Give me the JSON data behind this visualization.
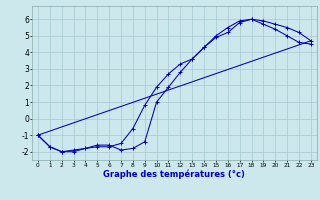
{
  "xlabel": "Graphe des températures (°c)",
  "bg_color": "#cce8ec",
  "grid_color": "#aacdd4",
  "line_color": "#0000bb",
  "xlim": [
    -0.5,
    23.5
  ],
  "ylim": [
    -2.5,
    6.8
  ],
  "xticks": [
    0,
    1,
    2,
    3,
    4,
    5,
    6,
    7,
    8,
    9,
    10,
    11,
    12,
    13,
    14,
    15,
    16,
    17,
    18,
    19,
    20,
    21,
    22,
    23
  ],
  "yticks": [
    -2,
    -1,
    0,
    1,
    2,
    3,
    4,
    5,
    6
  ],
  "line1_x": [
    0,
    1,
    2,
    3,
    4,
    5,
    6,
    7,
    8,
    9,
    10,
    11,
    12,
    13,
    14,
    15,
    16,
    17,
    18,
    19,
    20,
    21,
    22,
    23
  ],
  "line1_y": [
    -1.0,
    -1.7,
    -2.0,
    -2.0,
    -1.8,
    -1.7,
    -1.7,
    -1.5,
    -0.6,
    0.8,
    1.9,
    2.7,
    3.3,
    3.6,
    4.3,
    4.9,
    5.2,
    5.8,
    6.0,
    5.9,
    5.7,
    5.5,
    5.2,
    4.7
  ],
  "line2_x": [
    0,
    1,
    2,
    3,
    4,
    5,
    6,
    7,
    8,
    9,
    10,
    11,
    12,
    13,
    14,
    15,
    16,
    17,
    18,
    19,
    20,
    21,
    22,
    23
  ],
  "line2_y": [
    -1.0,
    -1.7,
    -2.0,
    -1.9,
    -1.8,
    -1.6,
    -1.6,
    -1.9,
    -1.8,
    -1.4,
    1.0,
    1.9,
    2.8,
    3.6,
    4.3,
    5.0,
    5.5,
    5.9,
    6.0,
    5.7,
    5.4,
    5.0,
    4.6,
    4.5
  ],
  "line3_x": [
    0,
    23
  ],
  "line3_y": [
    -1.0,
    4.7
  ],
  "ylabel_ticks": [
    "-2",
    "-1",
    "0",
    "1",
    "2",
    "3",
    "4",
    "5",
    "6"
  ],
  "xlabel_ticks": [
    "0",
    "1",
    "2",
    "3",
    "4",
    "5",
    "6",
    "7",
    "8",
    "9",
    "10",
    "11",
    "12",
    "13",
    "14",
    "15",
    "16",
    "17",
    "18",
    "19",
    "20",
    "21",
    "22",
    "23"
  ]
}
